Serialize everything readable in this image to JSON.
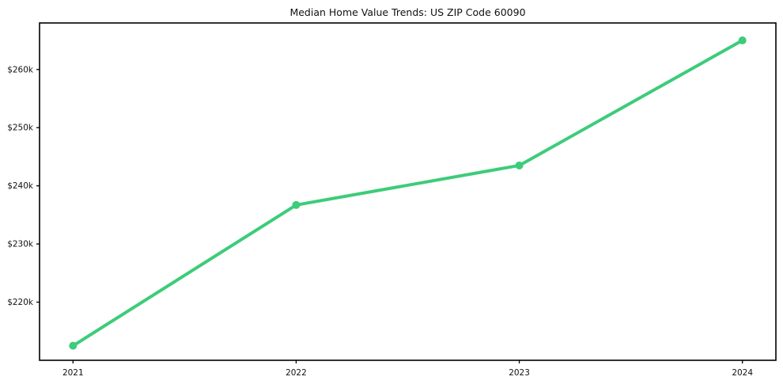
{
  "chart_data": {
    "type": "line",
    "title": "Median Home Value Trends: US ZIP Code 60090",
    "categories": [
      "2021",
      "2022",
      "2023",
      "2024"
    ],
    "series": [
      {
        "name": "Median Home Value",
        "values": [
          212500,
          236700,
          243500,
          265000
        ]
      }
    ],
    "xlabel": "",
    "ylabel": "",
    "ylim": [
      210000,
      268000
    ],
    "yticks": [
      220000,
      230000,
      240000,
      250000,
      260000
    ],
    "ytick_labels": [
      "$220k",
      "$230k",
      "$240k",
      "$250k",
      "$260k"
    ],
    "xtick_labels": [
      "2021",
      "2022",
      "2023",
      "2024"
    ],
    "grid": false,
    "legend": "none",
    "line_color": "#3dcc7a",
    "marker": "circle",
    "axis_color": "#000000",
    "background_color": "#ffffff"
  }
}
